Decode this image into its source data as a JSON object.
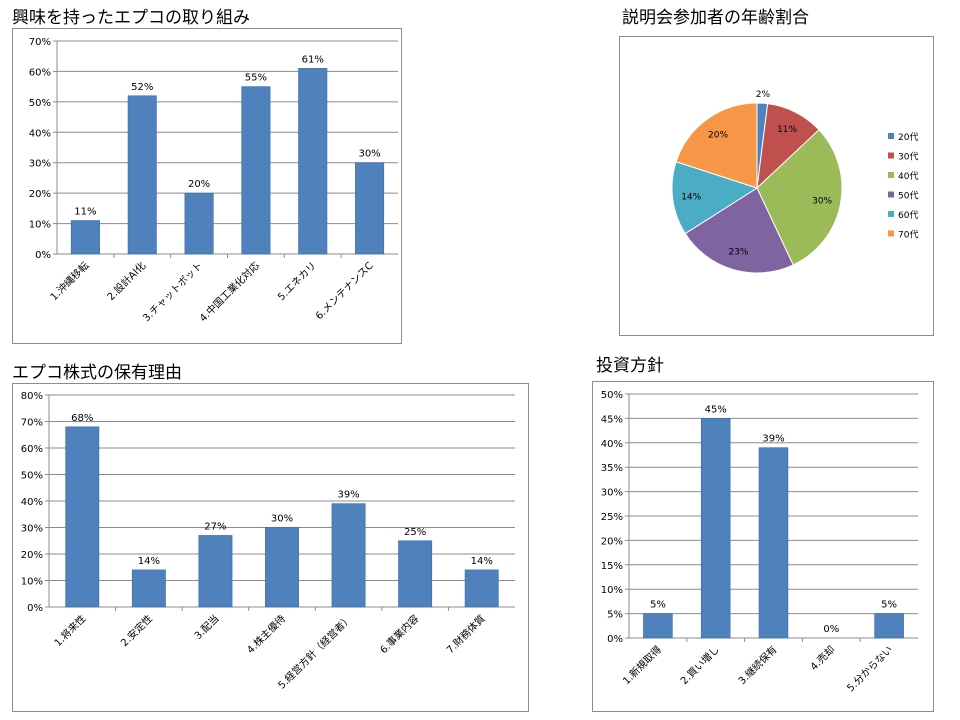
{
  "charts": [
    {
      "title": "興味を持ったエプコの取り組み",
      "chart_data": {
        "type": "bar",
        "title": "興味を持ったエプコの取り組み",
        "categories": [
          "1.沖縄移転",
          "2.設計AI化",
          "3.チャットボット",
          "4.中国工業化対応",
          "5.エネカリ",
          "6.メンテナンスC"
        ],
        "values": [
          11,
          52,
          20,
          55,
          61,
          30
        ],
        "value_labels": [
          "11%",
          "52%",
          "20%",
          "55%",
          "61%",
          "30%"
        ],
        "ylim": [
          0,
          70
        ],
        "yticks": [
          "0%",
          "10%",
          "20%",
          "30%",
          "40%",
          "50%",
          "60%",
          "70%"
        ],
        "grid": true,
        "color": "#4f81bd"
      }
    },
    {
      "title": "説明会参加者の年齢割合",
      "chart_data": {
        "type": "pie",
        "title": "説明会参加者の年齢割合",
        "labels": [
          "20代",
          "30代",
          "40代",
          "50代",
          "60代",
          "70代"
        ],
        "values": [
          2,
          11,
          30,
          23,
          14,
          20
        ],
        "value_labels": [
          "2%",
          "11%",
          "30%",
          "23%",
          "14%",
          "20%"
        ],
        "colors": [
          "#4f81bd",
          "#c0504d",
          "#9bbb59",
          "#8064a2",
          "#4bacc6",
          "#f79646"
        ],
        "legend": "right"
      }
    },
    {
      "title": "エプコ株式の保有理由",
      "chart_data": {
        "type": "bar",
        "title": "エプコ株式の保有理由",
        "categories": [
          "1.将来性",
          "2.安定性",
          "3.配当",
          "4.株主優待",
          "5.経営方針（経営者）",
          "6.事業内容",
          "7.財務体質"
        ],
        "values": [
          68,
          14,
          27,
          30,
          39,
          25,
          14
        ],
        "value_labels": [
          "68%",
          "14%",
          "27%",
          "30%",
          "39%",
          "25%",
          "14%"
        ],
        "ylim": [
          0,
          80
        ],
        "yticks": [
          "0%",
          "10%",
          "20%",
          "30%",
          "40%",
          "50%",
          "60%",
          "70%",
          "80%"
        ],
        "grid": true,
        "color": "#4f81bd"
      }
    },
    {
      "title": "投資方針",
      "chart_data": {
        "type": "bar",
        "title": "投資方針",
        "categories": [
          "1.新規取得",
          "2.買い増し",
          "3.継続保有",
          "4.売却",
          "5.分からない"
        ],
        "values": [
          5,
          45,
          39,
          0,
          5
        ],
        "value_labels": [
          "5%",
          "45%",
          "39%",
          "0%",
          "5%"
        ],
        "ylim": [
          0,
          50
        ],
        "yticks": [
          "0%",
          "5%",
          "10%",
          "15%",
          "20%",
          "25%",
          "30%",
          "35%",
          "40%",
          "45%",
          "50%"
        ],
        "grid": true,
        "color": "#4f81bd"
      }
    }
  ]
}
